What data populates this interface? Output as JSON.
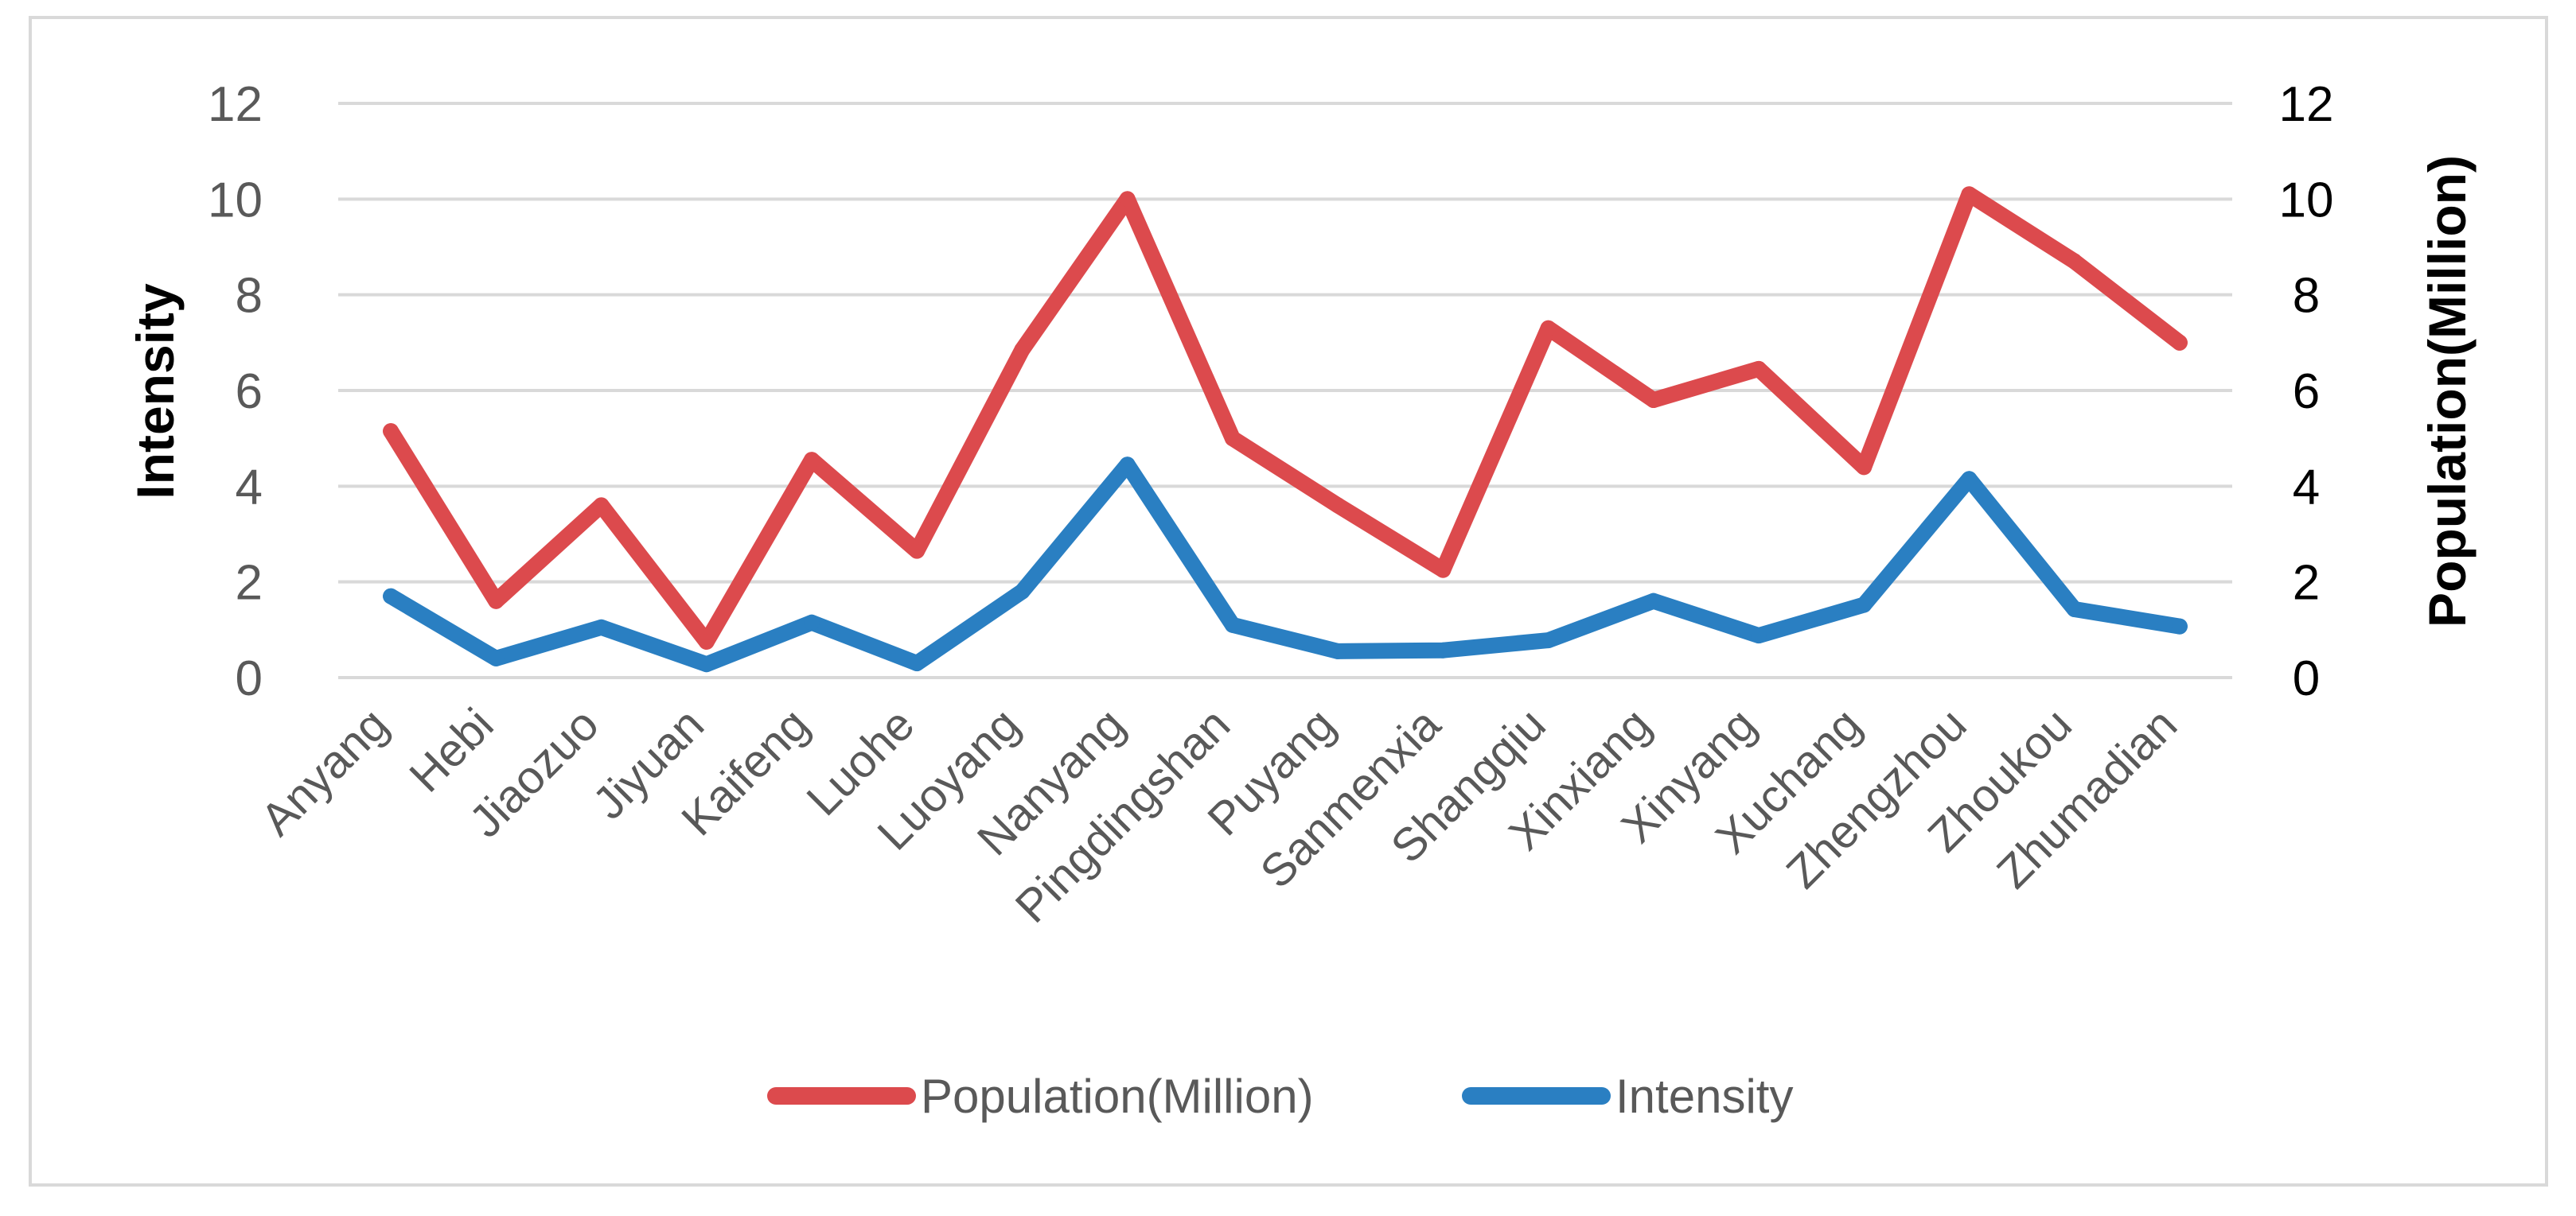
{
  "chart_data": {
    "type": "line",
    "title": "",
    "categories": [
      "Anyang",
      "Hebi",
      "Jiaozuo",
      "Jiyuan",
      "Kaifeng",
      "Luohe",
      "Luoyang",
      "Nanyang",
      "Pingdingshan",
      "Puyang",
      "Sanmenxia",
      "Shangqiu",
      "Xinxiang",
      "Xinyang",
      "Xuchang",
      "Zhengzhou",
      "Zhoukou",
      "Zhumadian"
    ],
    "xlabel": "",
    "ylabel": "Intensity",
    "ylabel_right": "Population(Million)",
    "ylim": [
      0,
      12
    ],
    "ylim_right": [
      0,
      12
    ],
    "yticks": [
      "0",
      "2",
      "4",
      "6",
      "8",
      "10",
      "12"
    ],
    "yticks_right": [
      "0",
      "2",
      "4",
      "6",
      "8",
      "10",
      "12"
    ],
    "grid": true,
    "legend_position": "bottom",
    "series": [
      {
        "name": "Population(Million)",
        "axis": "right",
        "color": "#dc4a4d",
        "values": [
          5.15,
          1.6,
          3.6,
          0.75,
          4.55,
          2.65,
          6.85,
          10.0,
          5.0,
          3.6,
          2.25,
          7.3,
          5.8,
          6.45,
          4.4,
          10.1,
          8.7,
          7.0
        ]
      },
      {
        "name": "Intensity",
        "axis": "left",
        "color": "#2a7fc2",
        "values": [
          1.7,
          0.4,
          1.05,
          0.28,
          1.15,
          0.3,
          1.8,
          4.45,
          1.1,
          0.55,
          0.57,
          0.78,
          1.6,
          0.88,
          1.52,
          4.15,
          1.43,
          1.07
        ]
      }
    ]
  }
}
